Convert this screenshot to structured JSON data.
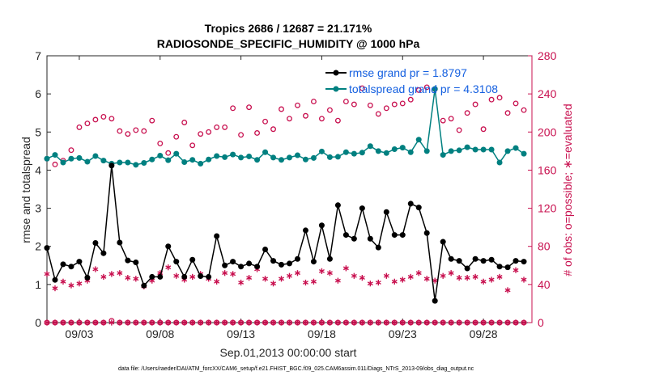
{
  "chart_data": {
    "type": "line",
    "title": [
      "Tropics 2686 / 12687 = 21.171%",
      "RADIOSONDE_SPECIFIC_HUMIDITY @ 1000 hPa"
    ],
    "xlabel": "Sep.01,2013 00:00:00 start",
    "ylabel": "rmse and totalspread",
    "y2label": "# of obs: o=possible; ∗=evaluated",
    "xlim": [
      1,
      31
    ],
    "ylim": [
      0,
      7
    ],
    "y2lim": [
      0,
      280
    ],
    "xticks": [
      {
        "value": 3,
        "label": "09/03"
      },
      {
        "value": 8,
        "label": "09/08"
      },
      {
        "value": 13,
        "label": "09/13"
      },
      {
        "value": 18,
        "label": "09/18"
      },
      {
        "value": 23,
        "label": "09/23"
      },
      {
        "value": 28,
        "label": "09/28"
      }
    ],
    "yticks": [
      "0",
      "1",
      "2",
      "3",
      "4",
      "5",
      "6",
      "7"
    ],
    "y2ticks": [
      "0",
      "40",
      "80",
      "120",
      "160",
      "200",
      "240",
      "280"
    ],
    "colors": {
      "rmse": "#000000",
      "totalspread": "#008080",
      "obs": "#c8104f",
      "legend_text": "#1560e0"
    },
    "x": [
      1.0,
      1.5,
      2.0,
      2.5,
      3.0,
      3.5,
      4.0,
      4.5,
      5.0,
      5.5,
      6.0,
      6.5,
      7.0,
      7.5,
      8.0,
      8.5,
      9.0,
      9.5,
      10.0,
      10.5,
      11.0,
      11.5,
      12.0,
      12.5,
      13.0,
      13.5,
      14.0,
      14.5,
      15.0,
      15.5,
      16.0,
      16.5,
      17.0,
      17.5,
      18.0,
      18.5,
      19.0,
      19.5,
      20.0,
      20.5,
      21.0,
      21.5,
      22.0,
      22.5,
      23.0,
      23.5,
      24.0,
      24.5,
      25.0,
      25.5,
      26.0,
      26.5,
      27.0,
      27.5,
      28.0,
      28.5,
      29.0,
      29.5,
      30.0,
      30.5
    ],
    "series": [
      {
        "name": "rmse",
        "legend": "rmse grand pr = 1.8797",
        "axis": "left",
        "values": [
          1.96,
          1.12,
          1.53,
          1.47,
          1.6,
          1.18,
          2.09,
          1.82,
          4.12,
          2.1,
          1.63,
          1.58,
          0.97,
          1.2,
          1.2,
          2.0,
          1.6,
          1.2,
          1.65,
          1.22,
          1.2,
          2.27,
          1.5,
          1.6,
          1.47,
          1.55,
          1.47,
          1.92,
          1.62,
          1.52,
          1.55,
          1.67,
          2.42,
          1.6,
          2.55,
          1.67,
          3.08,
          2.3,
          2.2,
          3.0,
          2.2,
          1.97,
          2.9,
          2.3,
          2.3,
          3.12,
          3.02,
          2.35,
          0.57,
          2.12,
          1.67,
          1.62,
          1.42,
          1.67,
          1.62,
          1.65,
          1.47,
          1.45,
          1.62,
          1.6
        ]
      },
      {
        "name": "totalspread",
        "legend": "totalspread grand pr = 4.3108",
        "axis": "left",
        "values": [
          4.3,
          4.4,
          4.2,
          4.3,
          4.32,
          4.22,
          4.37,
          4.25,
          4.17,
          4.2,
          4.2,
          4.14,
          4.19,
          4.28,
          4.38,
          4.26,
          4.43,
          4.21,
          4.27,
          4.17,
          4.28,
          4.37,
          4.34,
          4.41,
          4.33,
          4.36,
          4.27,
          4.47,
          4.33,
          4.27,
          4.33,
          4.39,
          4.28,
          4.32,
          4.49,
          4.34,
          4.35,
          4.47,
          4.43,
          4.46,
          4.63,
          4.5,
          4.45,
          4.55,
          4.59,
          4.47,
          4.8,
          4.5,
          6.13,
          4.4,
          4.5,
          4.52,
          4.6,
          4.54,
          4.54,
          4.54,
          4.2,
          4.5,
          4.58,
          4.43
        ]
      },
      {
        "name": "obs_possible",
        "axis": "right",
        "values": [
          172,
          166,
          170,
          181,
          205,
          209,
          213,
          216,
          214,
          201,
          198,
          202,
          201,
          212,
          188,
          178,
          195,
          210,
          186,
          198,
          200,
          205,
          205,
          225,
          197,
          226,
          199,
          211,
          203,
          224,
          214,
          228,
          217,
          232,
          214,
          223,
          212,
          232,
          229,
          246,
          228,
          219,
          225,
          229,
          230,
          234,
          244,
          247,
          245,
          212,
          214,
          202,
          220,
          229,
          203,
          234,
          236,
          220,
          230,
          223
        ]
      },
      {
        "name": "obs_evaluated",
        "axis": "right",
        "values": [
          51,
          36,
          43,
          39,
          41,
          44,
          56,
          48,
          51,
          52,
          47,
          46,
          38,
          44,
          52,
          58,
          49,
          45,
          48,
          51,
          46,
          43,
          52,
          51,
          42,
          47,
          56,
          46,
          41,
          46,
          49,
          52,
          42,
          43,
          54,
          52,
          44,
          57,
          49,
          47,
          41,
          42,
          49,
          43,
          45,
          48,
          52,
          46,
          44,
          49,
          52,
          47,
          47,
          48,
          43,
          45,
          48,
          34,
          55,
          45
        ]
      },
      {
        "name": "obs_zero_possible",
        "axis": "right",
        "values": [
          0,
          0,
          0,
          0,
          0,
          0,
          0,
          0,
          2,
          0,
          0,
          0,
          0,
          0,
          0,
          0,
          0,
          0,
          0,
          0,
          0,
          0,
          0,
          0,
          0,
          0,
          0,
          0,
          0,
          0,
          0,
          0,
          0,
          0,
          0,
          0,
          0,
          0,
          0,
          0,
          0,
          0,
          0,
          0,
          0,
          0,
          0,
          0,
          0,
          0,
          0,
          0,
          0,
          0,
          0,
          0,
          0,
          0,
          0,
          0
        ]
      },
      {
        "name": "obs_zero_evaluated",
        "axis": "right",
        "values": [
          0,
          0,
          0,
          0,
          0,
          0,
          0,
          0,
          0,
          0,
          0,
          0,
          0,
          0,
          0,
          0,
          0,
          0,
          0,
          0,
          0,
          0,
          0,
          0,
          0,
          0,
          0,
          0,
          0,
          0,
          0,
          0,
          0,
          0,
          0,
          0,
          0,
          0,
          0,
          0,
          0,
          0,
          0,
          0,
          0,
          0,
          0,
          0,
          0,
          0,
          0,
          0,
          0,
          0,
          0,
          0,
          0,
          0,
          0,
          0
        ]
      }
    ],
    "legend_position": "top-right",
    "footer": "data file: /Users/raeder/DAI/ATM_forcXX/CAM6_setup/f.e21.FHIST_BGC.f09_025.CAM6assim.011/Diags_NTrS_2013-09/obs_diag_output.nc"
  }
}
